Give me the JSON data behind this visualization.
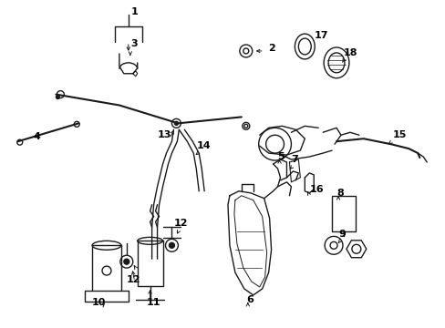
{
  "bg_color": "#ffffff",
  "line_color": "#1a1a1a",
  "text_color": "#000000",
  "fig_width": 4.89,
  "fig_height": 3.6,
  "dpi": 100
}
